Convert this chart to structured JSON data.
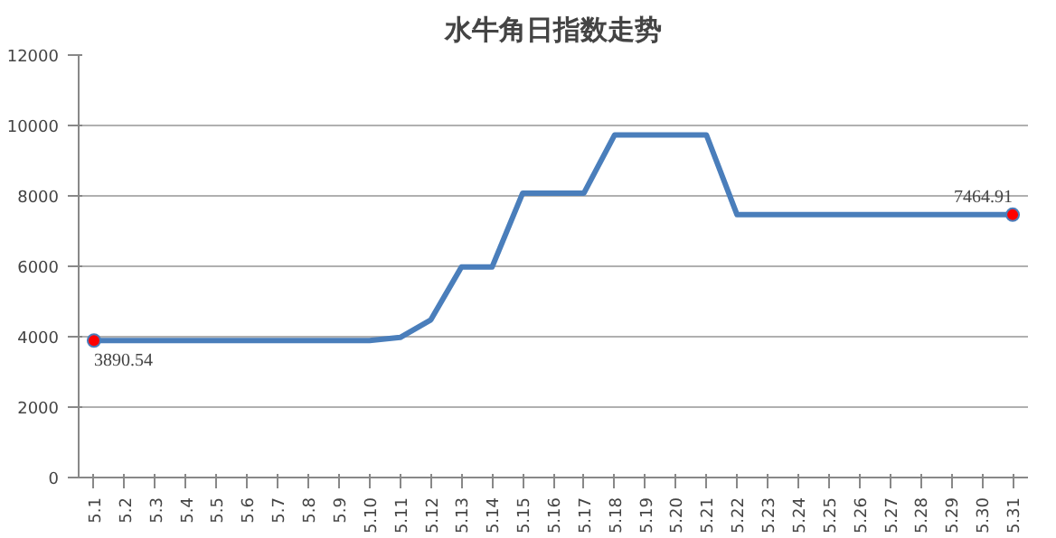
{
  "chart_data": {
    "type": "line",
    "title": "水牛角日指数走势",
    "categories": [
      "5.1",
      "5.2",
      "5.3",
      "5.4",
      "5.5",
      "5.6",
      "5.7",
      "5.8",
      "5.9",
      "5.10",
      "5.11",
      "5.12",
      "5.13",
      "5.14",
      "5.15",
      "5.16",
      "5.17",
      "5.18",
      "5.19",
      "5.20",
      "5.21",
      "5.22",
      "5.23",
      "5.24",
      "5.25",
      "5.26",
      "5.27",
      "5.28",
      "5.29",
      "5.30",
      "5.31"
    ],
    "series": [
      {
        "color": "#4a7ebb",
        "values": [
          3890.54,
          3890.54,
          3890.54,
          3890.54,
          3890.54,
          3890.54,
          3890.54,
          3890.54,
          3890.54,
          3890.54,
          3980,
          4480,
          5980,
          5980,
          8080,
          8080,
          8080,
          9730,
          9730,
          9730,
          9730,
          7464.91,
          7464.91,
          7464.91,
          7464.91,
          7464.91,
          7464.91,
          7464.91,
          7464.91,
          7464.91,
          7464.91
        ],
        "colors": [
          "#ff0000",
          null,
          null,
          null,
          null,
          null,
          null,
          null,
          null,
          null,
          null,
          null,
          null,
          null,
          null,
          null,
          null,
          null,
          null,
          null,
          null,
          null,
          null,
          null,
          null,
          null,
          null,
          null,
          null,
          null,
          "#ff0000"
        ],
        "value_labels": [
          "3890.54",
          null,
          null,
          null,
          null,
          null,
          null,
          null,
          null,
          null,
          null,
          null,
          null,
          null,
          null,
          null,
          null,
          null,
          null,
          null,
          null,
          null,
          null,
          null,
          null,
          null,
          null,
          null,
          null,
          null,
          "7464.91"
        ]
      }
    ],
    "ylim": [
      0,
      12000
    ],
    "yticks": [
      0,
      2000,
      4000,
      6000,
      8000,
      10000,
      12000
    ],
    "grid": "y",
    "line_style": "solid"
  }
}
